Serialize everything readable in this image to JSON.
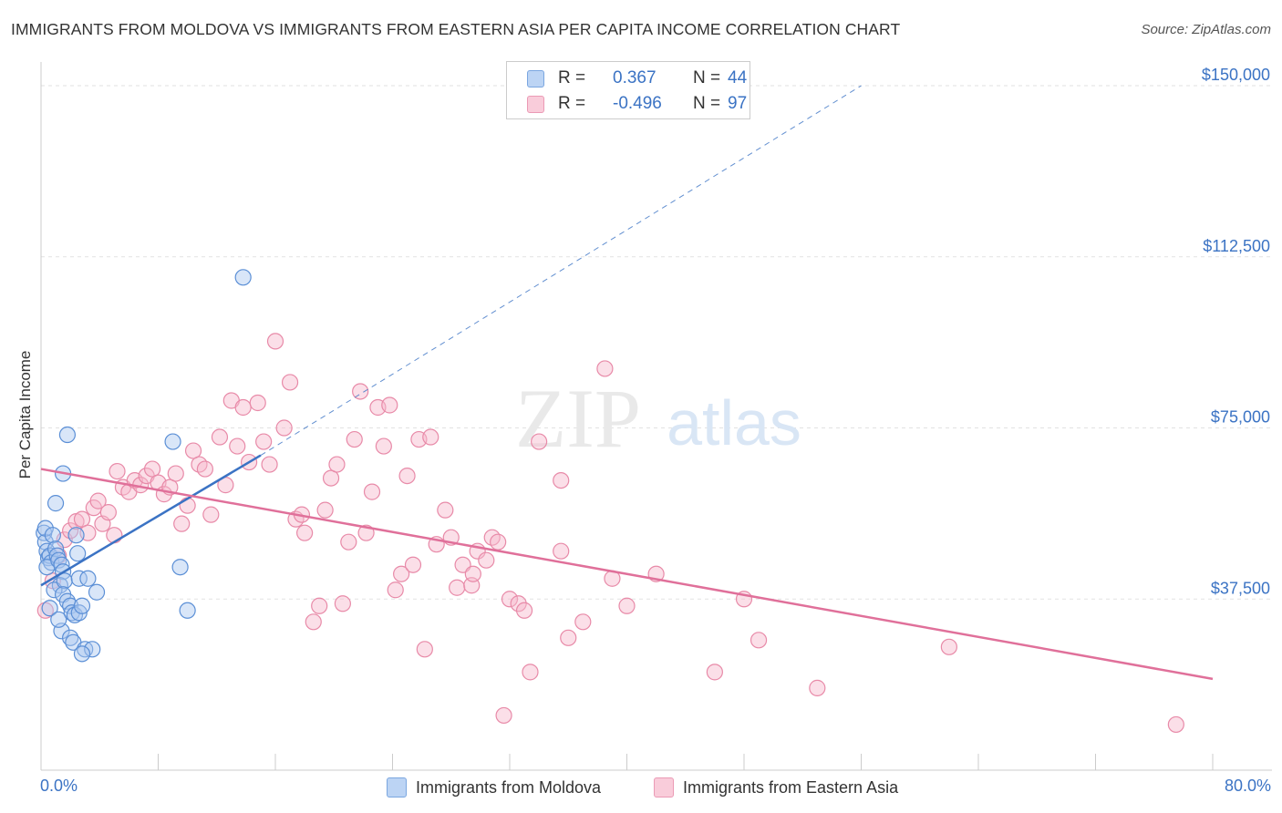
{
  "title": "IMMIGRANTS FROM MOLDOVA VS IMMIGRANTS FROM EASTERN ASIA PER CAPITA INCOME CORRELATION CHART",
  "source": "Source: ZipAtlas.com",
  "watermark": {
    "zip": "ZIP",
    "atlas": "atlas"
  },
  "colors": {
    "blue_fill": "#aac8f0",
    "blue_stroke": "#5b8fd6",
    "blue_line": "#3b73c4",
    "pink_fill": "#f6b8cb",
    "pink_stroke": "#e88aa8",
    "pink_line": "#e0709a",
    "axis_label": "#3b73c4",
    "grid": "#e2e2e2"
  },
  "legend": {
    "rows": [
      {
        "r_label": "R =",
        "r_value": "0.367",
        "n_label": "N =",
        "n_value": "44"
      },
      {
        "r_label": "R =",
        "r_value": "-0.496",
        "n_label": "N =",
        "n_value": "97"
      }
    ]
  },
  "bottom_legend": {
    "series1": "Immigrants from Moldova",
    "series2": "Immigrants from Eastern Asia"
  },
  "chart_data": {
    "type": "scatter",
    "title": "IMMIGRANTS FROM MOLDOVA VS IMMIGRANTS FROM EASTERN ASIA PER CAPITA INCOME CORRELATION CHART",
    "xlabel": "",
    "ylabel": "Per Capita Income",
    "xlim": [
      0,
      80
    ],
    "ylim": [
      0,
      157000
    ],
    "x_tick_labels": {
      "min": "0.0%",
      "max": "80.0%"
    },
    "y_ticks": [
      {
        "value": 37500,
        "label": "$37,500"
      },
      {
        "value": 75000,
        "label": "$75,000"
      },
      {
        "value": 112500,
        "label": "$112,500"
      },
      {
        "value": 150000,
        "label": "$150,000"
      }
    ],
    "series": [
      {
        "name": "Immigrants from Moldova",
        "color": "#5b8fd6",
        "points": [
          [
            0.2,
            52000
          ],
          [
            0.3,
            50000
          ],
          [
            0.4,
            48000
          ],
          [
            0.5,
            46500
          ],
          [
            0.6,
            47000
          ],
          [
            0.7,
            45500
          ],
          [
            0.4,
            44500
          ],
          [
            0.3,
            53000
          ],
          [
            0.8,
            51500
          ],
          [
            1.0,
            48500
          ],
          [
            1.1,
            47000
          ],
          [
            1.2,
            46000
          ],
          [
            1.4,
            45000
          ],
          [
            1.5,
            43500
          ],
          [
            1.3,
            40500
          ],
          [
            0.9,
            39500
          ],
          [
            1.6,
            41500
          ],
          [
            1.5,
            38500
          ],
          [
            1.8,
            37000
          ],
          [
            2.0,
            36000
          ],
          [
            2.1,
            34500
          ],
          [
            2.3,
            34000
          ],
          [
            2.6,
            34500
          ],
          [
            2.8,
            36000
          ],
          [
            1.4,
            30500
          ],
          [
            2.0,
            29000
          ],
          [
            2.2,
            28000
          ],
          [
            3.0,
            26500
          ],
          [
            3.5,
            26500
          ],
          [
            2.8,
            25500
          ],
          [
            2.6,
            42000
          ],
          [
            3.8,
            39000
          ],
          [
            1.0,
            58500
          ],
          [
            1.5,
            65000
          ],
          [
            1.8,
            73500
          ],
          [
            2.5,
            47500
          ],
          [
            3.2,
            42000
          ],
          [
            9.0,
            72000
          ],
          [
            9.5,
            44500
          ],
          [
            10.0,
            35000
          ],
          [
            13.8,
            108000
          ],
          [
            0.6,
            35500
          ],
          [
            1.2,
            33000
          ],
          [
            2.4,
            51500
          ]
        ]
      },
      {
        "name": "Immigrants from Eastern Asia",
        "color": "#e88aa8",
        "points": [
          [
            0.3,
            35000
          ],
          [
            0.8,
            41500
          ],
          [
            1.2,
            47000
          ],
          [
            1.6,
            50500
          ],
          [
            2.0,
            52500
          ],
          [
            2.4,
            54500
          ],
          [
            2.8,
            55000
          ],
          [
            3.2,
            52000
          ],
          [
            3.6,
            57500
          ],
          [
            3.9,
            59000
          ],
          [
            4.2,
            54000
          ],
          [
            4.6,
            56500
          ],
          [
            5.0,
            51500
          ],
          [
            5.2,
            65500
          ],
          [
            5.6,
            62000
          ],
          [
            6.0,
            61000
          ],
          [
            6.4,
            63500
          ],
          [
            6.8,
            62500
          ],
          [
            7.2,
            64500
          ],
          [
            7.6,
            66000
          ],
          [
            8.0,
            63000
          ],
          [
            8.4,
            60500
          ],
          [
            8.8,
            62000
          ],
          [
            9.2,
            65000
          ],
          [
            9.6,
            54000
          ],
          [
            10.0,
            58000
          ],
          [
            10.4,
            70000
          ],
          [
            10.8,
            67000
          ],
          [
            11.2,
            66000
          ],
          [
            11.6,
            56000
          ],
          [
            12.2,
            73000
          ],
          [
            12.6,
            62500
          ],
          [
            13.0,
            81000
          ],
          [
            13.4,
            71000
          ],
          [
            13.8,
            79500
          ],
          [
            14.2,
            67500
          ],
          [
            14.8,
            80500
          ],
          [
            15.2,
            72000
          ],
          [
            15.6,
            67000
          ],
          [
            16.0,
            94000
          ],
          [
            16.6,
            75000
          ],
          [
            17.0,
            85000
          ],
          [
            17.4,
            55000
          ],
          [
            17.8,
            56000
          ],
          [
            18.0,
            52000
          ],
          [
            18.6,
            32500
          ],
          [
            19.0,
            36000
          ],
          [
            19.4,
            57000
          ],
          [
            19.8,
            64000
          ],
          [
            20.2,
            67000
          ],
          [
            20.6,
            36500
          ],
          [
            21.0,
            50000
          ],
          [
            21.4,
            72500
          ],
          [
            21.8,
            83000
          ],
          [
            22.2,
            52000
          ],
          [
            22.6,
            61000
          ],
          [
            23.0,
            79500
          ],
          [
            23.4,
            71000
          ],
          [
            23.8,
            80000
          ],
          [
            24.2,
            39500
          ],
          [
            24.6,
            43000
          ],
          [
            25.0,
            64500
          ],
          [
            25.4,
            45000
          ],
          [
            25.8,
            72500
          ],
          [
            26.2,
            26500
          ],
          [
            26.6,
            73000
          ],
          [
            27.0,
            49500
          ],
          [
            27.6,
            57000
          ],
          [
            28.0,
            51000
          ],
          [
            28.4,
            40000
          ],
          [
            28.8,
            45000
          ],
          [
            29.4,
            40500
          ],
          [
            29.8,
            48000
          ],
          [
            30.4,
            46000
          ],
          [
            30.8,
            51000
          ],
          [
            31.2,
            50000
          ],
          [
            31.6,
            12000
          ],
          [
            32.0,
            37500
          ],
          [
            32.6,
            36500
          ],
          [
            33.0,
            35000
          ],
          [
            33.4,
            21500
          ],
          [
            34.0,
            72000
          ],
          [
            35.5,
            63500
          ],
          [
            36.0,
            29000
          ],
          [
            37.0,
            32500
          ],
          [
            38.5,
            88000
          ],
          [
            39.0,
            42000
          ],
          [
            40.0,
            36000
          ],
          [
            42.0,
            43000
          ],
          [
            46.0,
            21500
          ],
          [
            48.0,
            37500
          ],
          [
            49.0,
            28500
          ],
          [
            53.0,
            18000
          ],
          [
            62.0,
            27000
          ],
          [
            77.5,
            10000
          ],
          [
            35.5,
            48000
          ],
          [
            29.5,
            43000
          ]
        ]
      }
    ],
    "trend_lines": [
      {
        "series": "Immigrants from Moldova",
        "from": [
          0.0,
          40500
        ],
        "to": [
          15.0,
          69000
        ],
        "dashed_extension_to": [
          56.0,
          150000
        ]
      },
      {
        "series": "Immigrants from Eastern Asia",
        "from": [
          0.0,
          66000
        ],
        "to": [
          80.0,
          20000
        ]
      }
    ],
    "grid": true,
    "legend_position": "top-center"
  }
}
